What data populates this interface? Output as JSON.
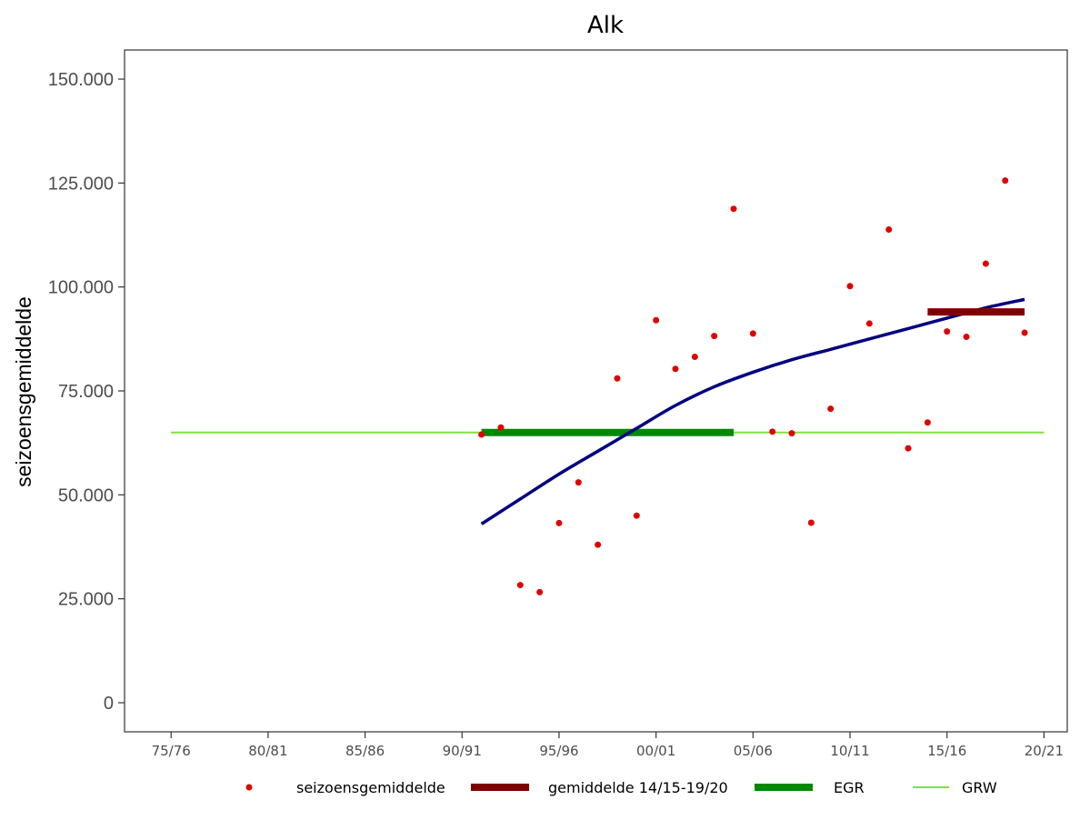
{
  "chart_data": {
    "type": "scatter",
    "title": "Alk",
    "xlabel": "",
    "ylabel": "seizoensgemiddelde",
    "xlim": [
      1975,
      2021
    ],
    "ylim": [
      -7000,
      157000
    ],
    "grid": false,
    "legend_position": "bottom",
    "y_ticks": [
      {
        "value": 0,
        "label": "0"
      },
      {
        "value": 25000,
        "label": "25.000"
      },
      {
        "value": 50000,
        "label": "50.000"
      },
      {
        "value": 75000,
        "label": "75.000"
      },
      {
        "value": 100000,
        "label": "100.000"
      },
      {
        "value": 125000,
        "label": "125.000"
      },
      {
        "value": 150000,
        "label": "150.000"
      }
    ],
    "x_ticks": [
      {
        "value": 1975,
        "label": "75/76"
      },
      {
        "value": 1980,
        "label": "80/81"
      },
      {
        "value": 1985,
        "label": "85/86"
      },
      {
        "value": 1990,
        "label": "90/91"
      },
      {
        "value": 1995,
        "label": "95/96"
      },
      {
        "value": 2000,
        "label": "00/01"
      },
      {
        "value": 2005,
        "label": "05/06"
      },
      {
        "value": 2010,
        "label": "10/11"
      },
      {
        "value": 2015,
        "label": "15/16"
      },
      {
        "value": 2020,
        "label": "20/21"
      }
    ],
    "series": [
      {
        "name": "seizoensgemiddelde",
        "kind": "points",
        "color": "#e00000",
        "points": [
          {
            "x": 1991,
            "y": 64500
          },
          {
            "x": 1992,
            "y": 66200
          },
          {
            "x": 1993,
            "y": 28300
          },
          {
            "x": 1994,
            "y": 26600
          },
          {
            "x": 1995,
            "y": 43200
          },
          {
            "x": 1996,
            "y": 53000
          },
          {
            "x": 1997,
            "y": 38000
          },
          {
            "x": 1998,
            "y": 78000
          },
          {
            "x": 1999,
            "y": 45000
          },
          {
            "x": 2000,
            "y": 92000
          },
          {
            "x": 2001,
            "y": 80300
          },
          {
            "x": 2002,
            "y": 83200
          },
          {
            "x": 2003,
            "y": 88200
          },
          {
            "x": 2004,
            "y": 118800
          },
          {
            "x": 2005,
            "y": 88800
          },
          {
            "x": 2006,
            "y": 65200
          },
          {
            "x": 2007,
            "y": 64800
          },
          {
            "x": 2008,
            "y": 43300
          },
          {
            "x": 2009,
            "y": 70700
          },
          {
            "x": 2010,
            "y": 100200
          },
          {
            "x": 2011,
            "y": 91200
          },
          {
            "x": 2012,
            "y": 113800
          },
          {
            "x": 2013,
            "y": 61200
          },
          {
            "x": 2014,
            "y": 67400
          },
          {
            "x": 2015,
            "y": 89300
          },
          {
            "x": 2016,
            "y": 88000
          },
          {
            "x": 2017,
            "y": 105600
          },
          {
            "x": 2018,
            "y": 125600
          },
          {
            "x": 2019,
            "y": 89000
          }
        ]
      },
      {
        "name": "gemiddelde 14/15-19/20",
        "kind": "segment",
        "color": "#800000",
        "x": [
          2014,
          2019
        ],
        "y": 94000
      },
      {
        "name": "EGR",
        "kind": "segment",
        "color": "#008800",
        "x": [
          1991,
          2004
        ],
        "y": 65000
      },
      {
        "name": "GRW",
        "kind": "segment",
        "color": "#80e040",
        "x": [
          1975,
          2020
        ],
        "y": 65000
      },
      {
        "kind": "trend",
        "color": "#000080",
        "points": [
          {
            "x": 1991,
            "y": 43000
          },
          {
            "x": 1993,
            "y": 49000
          },
          {
            "x": 1995,
            "y": 55000
          },
          {
            "x": 1997,
            "y": 60500
          },
          {
            "x": 1999,
            "y": 66000
          },
          {
            "x": 2001,
            "y": 71500
          },
          {
            "x": 2003,
            "y": 76000
          },
          {
            "x": 2005,
            "y": 79500
          },
          {
            "x": 2007,
            "y": 82500
          },
          {
            "x": 2009,
            "y": 85000
          },
          {
            "x": 2011,
            "y": 87500
          },
          {
            "x": 2013,
            "y": 90000
          },
          {
            "x": 2015,
            "y": 92500
          },
          {
            "x": 2017,
            "y": 95000
          },
          {
            "x": 2019,
            "y": 97000
          }
        ]
      }
    ]
  }
}
